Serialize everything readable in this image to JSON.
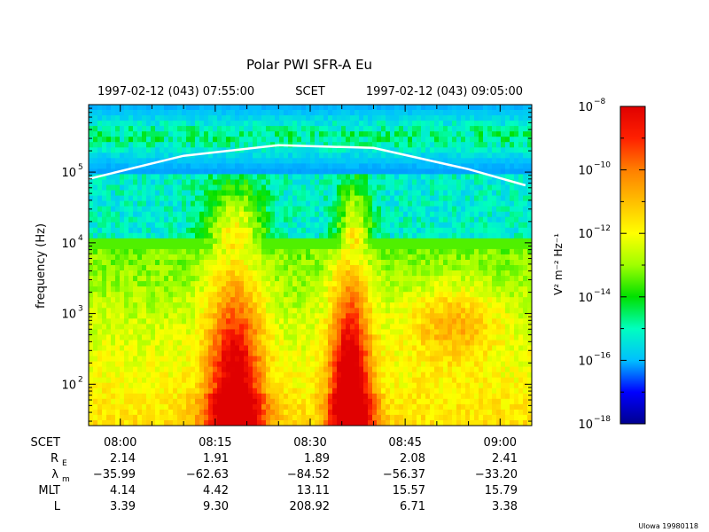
{
  "chart_data": {
    "type": "heatmap",
    "title": "Polar PWI SFR-A Eu",
    "time_header": {
      "start": "1997-02-12 (043) 07:55:00",
      "label": "SCET",
      "end": "1997-02-12 (043) 09:05:00"
    },
    "ylabel": "frequency (Hz)",
    "y_scale": "log",
    "ylim": [
      26,
      900000
    ],
    "y_ticks": [
      {
        "value": 100,
        "mantissa": "10",
        "exp": "2"
      },
      {
        "value": 1000,
        "mantissa": "10",
        "exp": "3"
      },
      {
        "value": 10000,
        "mantissa": "10",
        "exp": "4"
      },
      {
        "value": 100000,
        "mantissa": "10",
        "exp": "5"
      }
    ],
    "xlim": [
      "07:55",
      "09:05"
    ],
    "x_ticks": [
      "08:00",
      "08:15",
      "08:30",
      "08:45",
      "09:00"
    ],
    "colorbar": {
      "label_html": "V² m⁻² Hz⁻¹",
      "range": [
        -18,
        -8
      ],
      "ticks": [
        {
          "value": -8,
          "mantissa": "10",
          "exp": "−8"
        },
        {
          "value": -10,
          "mantissa": "10",
          "exp": "−10"
        },
        {
          "value": -12,
          "mantissa": "10",
          "exp": "−12"
        },
        {
          "value": -14,
          "mantissa": "10",
          "exp": "−14"
        },
        {
          "value": -16,
          "mantissa": "10",
          "exp": "−16"
        },
        {
          "value": -18,
          "mantissa": "10",
          "exp": "−18"
        }
      ],
      "colors": [
        "#00008f",
        "#0000ff",
        "#00bfff",
        "#00ffbf",
        "#00e000",
        "#9fff00",
        "#ffff00",
        "#ffbf00",
        "#ff7f00",
        "#ff2000",
        "#e00000"
      ]
    },
    "overlay_line": {
      "description": "white trace across upper spectrum",
      "x": [
        "07:55",
        "08:10",
        "08:25",
        "08:40",
        "08:55",
        "09:04"
      ],
      "y": [
        80000,
        170000,
        240000,
        220000,
        110000,
        65000
      ]
    },
    "ephemeris": {
      "rows": [
        {
          "label": "SCET",
          "sub": "",
          "values": [
            "08:00",
            "08:15",
            "08:30",
            "08:45",
            "09:00"
          ]
        },
        {
          "label": "R",
          "sub": "E",
          "values": [
            "2.14",
            "1.91",
            "1.89",
            "2.08",
            "2.41"
          ]
        },
        {
          "label": "λ",
          "sub": "m",
          "values": [
            "−35.99",
            "−62.63",
            "−84.52",
            "−56.37",
            "−33.20"
          ]
        },
        {
          "label": "MLT",
          "sub": "",
          "values": [
            "4.14",
            "4.42",
            "13.11",
            "15.57",
            "15.79"
          ]
        },
        {
          "label": "L",
          "sub": "",
          "values": [
            "3.39",
            "9.30",
            "208.92",
            "6.71",
            "3.38"
          ]
        }
      ]
    },
    "footer": "Ulowa 19980118"
  }
}
